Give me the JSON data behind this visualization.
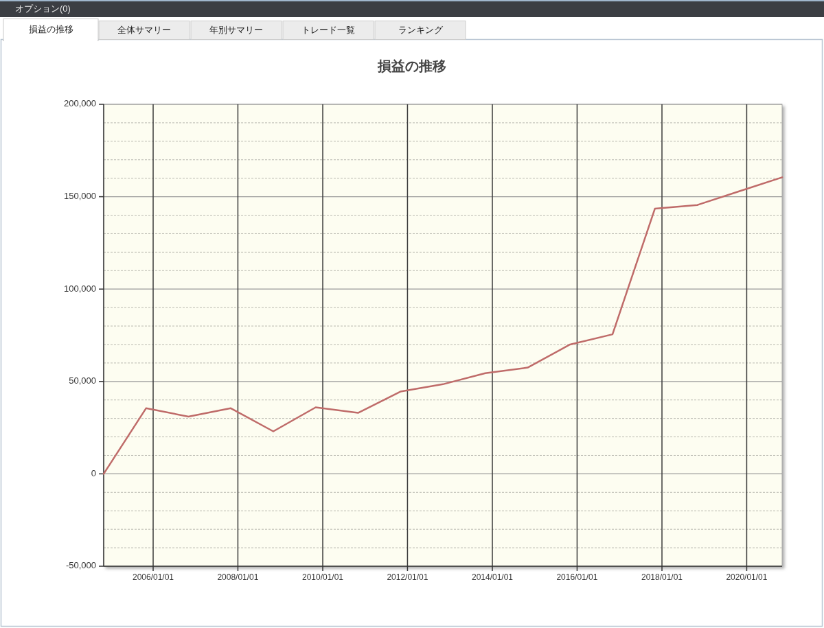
{
  "chart_data": {
    "type": "line",
    "title": "損益の推移",
    "annotations": [
      "オプション(0)",
      "損益の推移",
      "全体サマリー",
      "年別サマリー",
      "トレード一覧",
      "ランキング"
    ],
    "x": [
      "2004-11-01",
      "2005-11-01",
      "2006-11-01",
      "2007-11-01",
      "2008-11-01",
      "2009-11-01",
      "2010-11-01",
      "2011-11-01",
      "2012-11-01",
      "2013-11-01",
      "2014-11-01",
      "2015-11-01",
      "2016-11-01",
      "2017-11-01",
      "2018-11-01",
      "2019-11-01",
      "2020-11-01"
    ],
    "series": [
      {
        "color": "#bf6b69",
        "values": [
          0,
          35500,
          31000,
          35500,
          23000,
          36000,
          33000,
          44500,
          48500,
          54500,
          57500,
          70000,
          75500,
          143500,
          145500,
          153000,
          160500
        ]
      }
    ],
    "xlim": [
      "2004-11-01",
      "2020-11-01"
    ],
    "xticks": [
      {
        "value": "2006-01-01",
        "label": "2006/01/01"
      },
      {
        "value": "2008-01-01",
        "label": "2008/01/01"
      },
      {
        "value": "2010-01-01",
        "label": "2010/01/01"
      },
      {
        "value": "2012-01-01",
        "label": "2012/01/01"
      },
      {
        "value": "2014-01-01",
        "label": "2014/01/01"
      },
      {
        "value": "2016-01-01",
        "label": "2016/01/01"
      },
      {
        "value": "2018-01-01",
        "label": "2018/01/01"
      },
      {
        "value": "2020-01-01",
        "label": "2020/01/01"
      }
    ],
    "ylim": [
      -50000,
      200000
    ],
    "yticks": [
      {
        "value": -50000,
        "label": "-50,000"
      },
      {
        "value": -40000,
        "label": null
      },
      {
        "value": -30000,
        "label": null
      },
      {
        "value": -20000,
        "label": null
      },
      {
        "value": -10000,
        "label": null
      },
      0,
      {
        "value": 10000,
        "label": null
      },
      {
        "value": 20000,
        "label": null
      },
      {
        "value": 30000,
        "label": null
      },
      {
        "value": 40000,
        "label": null
      },
      {
        "value": 50000,
        "label": "50,000"
      },
      {
        "value": 60000,
        "label": null
      },
      {
        "value": 70000,
        "label": null
      },
      {
        "value": 80000,
        "label": null
      },
      {
        "value": 90000,
        "label": null
      },
      {
        "value": 100000,
        "label": "100,000"
      },
      {
        "value": 110000,
        "label": null
      },
      {
        "value": 120000,
        "label": null
      },
      {
        "value": 130000,
        "label": null
      },
      {
        "value": 140000,
        "label": null
      },
      {
        "value": 150000,
        "label": "150,000"
      },
      {
        "value": 160000,
        "label": null
      },
      {
        "value": 170000,
        "label": null
      },
      {
        "value": 180000,
        "label": null
      },
      {
        "value": 190000,
        "label": null
      },
      {
        "value": 200000,
        "label": "200,000"
      }
    ],
    "grid": true
  }
}
